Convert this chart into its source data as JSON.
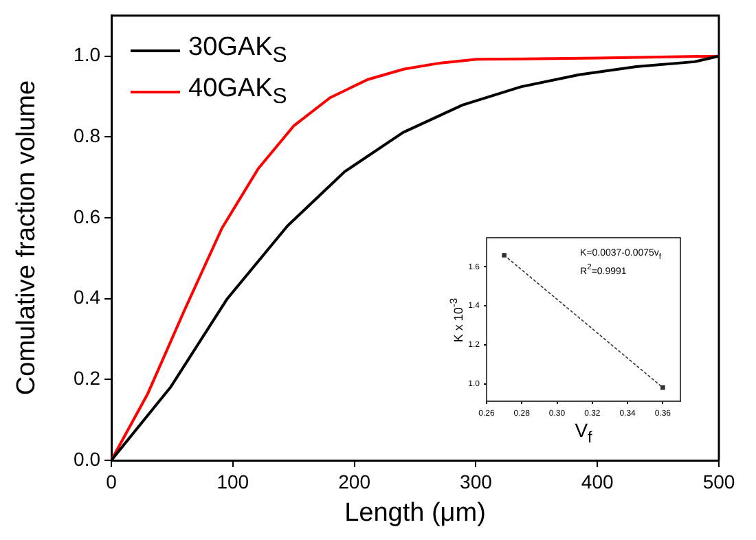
{
  "chart_data": [
    {
      "type": "line",
      "xlabel": "Length (μm)",
      "ylabel": "Comulative fraction volume",
      "legend": "top left",
      "x": [
        0,
        49,
        95,
        145,
        192,
        240,
        289,
        337,
        385,
        432,
        480,
        500
      ],
      "xlim": [
        0,
        500
      ],
      "xticks": [
        0,
        100,
        200,
        300,
        400,
        500
      ],
      "ylim": [
        0,
        1.1
      ],
      "yticks": [
        {
          "value": 0,
          "label": "0.0"
        },
        {
          "value": 0.2,
          "label": "0.2"
        },
        {
          "value": 0.4,
          "label": "0.4"
        },
        {
          "value": 0.6,
          "label": "0.6"
        },
        {
          "value": 0.8,
          "label": "0.8"
        },
        {
          "value": 1,
          "label": "1.0"
        }
      ],
      "series": [
        {
          "name": "30GAK$_{S}$",
          "color": "#000000",
          "values": [
            0,
            0.182,
            0.398,
            0.58,
            0.714,
            0.811,
            0.879,
            0.924,
            0.954,
            0.974,
            0.986,
            1.0
          ]
        },
        {
          "name": "40GAK$_{S}$",
          "color": "#ff0000",
          "x": [
            0,
            30,
            60,
            91,
            121,
            150,
            180,
            211,
            241,
            271,
            301,
            400,
            500
          ],
          "values": [
            0,
            0.165,
            0.37,
            0.574,
            0.722,
            0.827,
            0.897,
            0.942,
            0.968,
            0.983,
            0.992,
            0.995,
            1.0
          ]
        }
      ]
    },
    {
      "type": "line",
      "xlabel": "V$_{f}$",
      "ylabel": "K x 10$^{-3}$",
      "marker": "square",
      "line_style": "dotted",
      "x": [
        0.27,
        0.36
      ],
      "xlim": [
        0.26,
        0.37
      ],
      "xticks": [
        0.26,
        0.28,
        {
          "value": 0.3,
          "label": "0.30"
        },
        0.32,
        0.34,
        0.36
      ],
      "ylim": [
        0.91,
        1.75
      ],
      "yticks": [
        {
          "value": 1,
          "label": "1.0"
        },
        {
          "value": 1.2,
          "label": "1.2"
        },
        {
          "value": 1.4,
          "label": "1.4"
        },
        {
          "value": 1.6,
          "label": "1.6"
        }
      ],
      "annotations": [
        "K=0.0037-0.0075v$_{f}$",
        "R$^{2}$=0.9991"
      ],
      "series": [
        {
          "color": "#333333",
          "values": [
            1.66,
            0.98
          ]
        }
      ]
    }
  ]
}
